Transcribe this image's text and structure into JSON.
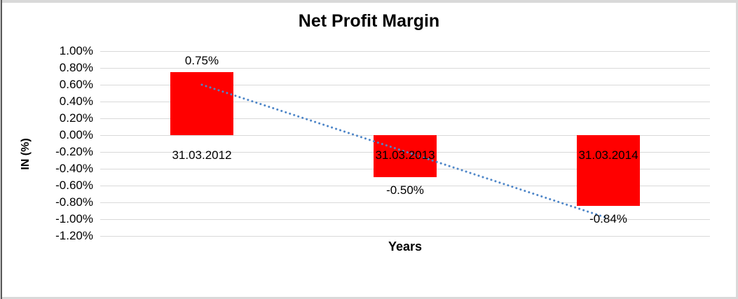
{
  "chart_data": {
    "type": "bar",
    "title": "Net Profit Margin",
    "xlabel": "Years",
    "ylabel": "IN (%)",
    "categories": [
      "31.03.2012",
      "31.03.2013",
      "31.03.2014"
    ],
    "values": [
      0.75,
      -0.5,
      -0.84
    ],
    "value_labels": [
      "0.75%",
      "-0.50%",
      "-0.84%"
    ],
    "y_ticks": [
      "1.00%",
      "0.80%",
      "0.60%",
      "0.40%",
      "0.20%",
      "0.00%",
      "-0.20%",
      "-0.40%",
      "-0.60%",
      "-0.80%",
      "-1.00%",
      "-1.20%"
    ],
    "ylim": [
      -1.2,
      1.0
    ],
    "grid": true,
    "legend": "none",
    "bar_color": "#ff0000",
    "gridline_color": "#d9d9d9",
    "trendline": {
      "type": "linear",
      "style": "dotted",
      "color": "#4e86c8",
      "start_value": 0.6,
      "end_value": -0.99
    }
  }
}
